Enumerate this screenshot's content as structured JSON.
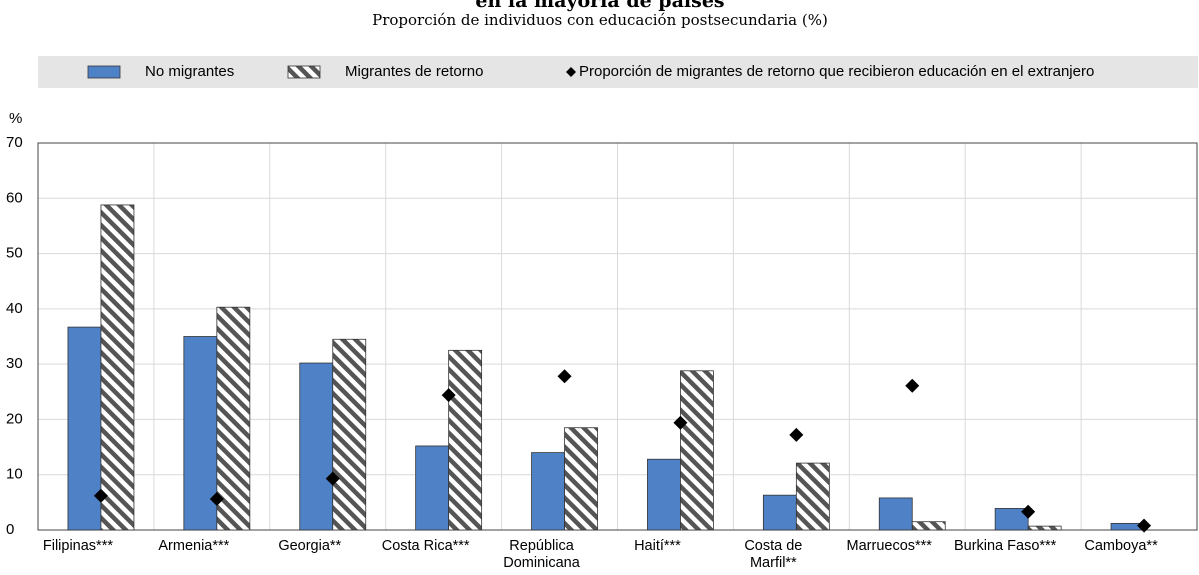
{
  "chart_data": {
    "type": "bar",
    "title": "en la mayoría de países",
    "subtitle": "Proporción de individuos con educación postsecundaria (%)",
    "y_label": "%",
    "categories": [
      "Filipinas***",
      "Armenia***",
      "Georgia**",
      "Costa Rica***",
      "República Dominicana",
      "Haití***",
      "Costa de Marfil**",
      "Marruecos***",
      "Burkina Faso***",
      "Camboya**"
    ],
    "series": [
      {
        "name": "No migrantes",
        "color": "#4f81c7",
        "kind": "bar",
        "values": [
          36.7,
          35.0,
          30.2,
          15.2,
          14.0,
          12.8,
          6.3,
          5.8,
          3.9,
          1.2
        ]
      },
      {
        "name": "Migrantes de retorno",
        "color": "#555555",
        "kind": "hatched-bar",
        "values": [
          58.8,
          40.3,
          34.5,
          32.5,
          18.5,
          28.8,
          12.1,
          1.5,
          0.7,
          null
        ]
      },
      {
        "name": "Proporción de migrantes de retorno que recibieron educación en el extranjero",
        "color": "#000000",
        "kind": "diamond",
        "values": [
          6.2,
          5.6,
          9.3,
          24.4,
          27.8,
          19.4,
          17.2,
          26.1,
          3.3,
          0.8
        ]
      }
    ],
    "ylim": [
      0,
      70
    ],
    "yticks": [
      0,
      10,
      20,
      30,
      40,
      50,
      60,
      70
    ],
    "grid": true
  }
}
